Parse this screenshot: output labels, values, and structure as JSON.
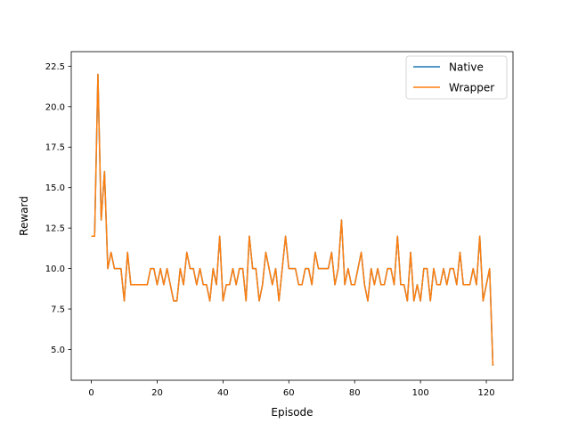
{
  "chart_data": {
    "type": "line",
    "title": "",
    "xlabel": "Episode",
    "ylabel": "Reward",
    "xlim": [
      -6.1,
      128.1
    ],
    "ylim": [
      3.1,
      23.4
    ],
    "xticks": [
      0,
      20,
      40,
      60,
      80,
      100,
      120
    ],
    "xtick_labels": [
      "0",
      "20",
      "40",
      "60",
      "80",
      "100",
      "120"
    ],
    "yticks": [
      5.0,
      7.5,
      10.0,
      12.5,
      15.0,
      17.5,
      20.0,
      22.5
    ],
    "ytick_labels": [
      "5.0",
      "7.5",
      "10.0",
      "12.5",
      "15.0",
      "17.5",
      "20.0",
      "22.5"
    ],
    "grid": false,
    "legend_position": "top-right",
    "x": [
      0,
      1,
      2,
      3,
      4,
      5,
      6,
      7,
      8,
      9,
      10,
      11,
      12,
      13,
      14,
      15,
      16,
      17,
      18,
      19,
      20,
      21,
      22,
      23,
      24,
      25,
      26,
      27,
      28,
      29,
      30,
      31,
      32,
      33,
      34,
      35,
      36,
      37,
      38,
      39,
      40,
      41,
      42,
      43,
      44,
      45,
      46,
      47,
      48,
      49,
      50,
      51,
      52,
      53,
      54,
      55,
      56,
      57,
      58,
      59,
      60,
      61,
      62,
      63,
      64,
      65,
      66,
      67,
      68,
      69,
      70,
      71,
      72,
      73,
      74,
      75,
      76,
      77,
      78,
      79,
      80,
      81,
      82,
      83,
      84,
      85,
      86,
      87,
      88,
      89,
      90,
      91,
      92,
      93,
      94,
      95,
      96,
      97,
      98,
      99,
      100,
      101,
      102,
      103,
      104,
      105,
      106,
      107,
      108,
      109,
      110,
      111,
      112,
      113,
      114,
      115,
      116,
      117,
      118,
      119,
      120,
      121,
      122
    ],
    "series": [
      {
        "name": "Native",
        "color": "#1f77b4",
        "values": [
          12,
          12,
          22,
          13,
          16,
          10,
          11,
          10,
          10,
          10,
          8,
          11,
          9,
          9,
          9,
          9,
          9,
          9,
          10,
          10,
          9,
          10,
          9,
          10,
          9,
          8,
          8,
          10,
          9,
          11,
          10,
          10,
          9,
          10,
          9,
          9,
          8,
          10,
          9,
          12,
          8,
          9,
          9,
          10,
          9,
          10,
          10,
          8,
          12,
          10,
          10,
          8,
          9,
          11,
          10,
          9,
          10,
          8,
          10,
          12,
          10,
          10,
          10,
          9,
          9,
          10,
          10,
          9,
          11,
          10,
          10,
          10,
          10,
          11,
          9,
          10,
          13,
          9,
          10,
          9,
          9,
          10,
          11,
          9,
          8,
          10,
          9,
          10,
          9,
          9,
          10,
          10,
          9,
          12,
          9,
          9,
          8,
          11,
          8,
          9,
          8,
          10,
          10,
          8,
          10,
          9,
          9,
          10,
          9,
          10,
          10,
          9,
          11,
          9,
          9,
          9,
          10,
          9,
          12,
          8,
          9,
          10,
          4
        ]
      },
      {
        "name": "Wrapper",
        "color": "#ff7f0e",
        "values": [
          12,
          12,
          22,
          13,
          16,
          10,
          11,
          10,
          10,
          10,
          8,
          11,
          9,
          9,
          9,
          9,
          9,
          9,
          10,
          10,
          9,
          10,
          9,
          10,
          9,
          8,
          8,
          10,
          9,
          11,
          10,
          10,
          9,
          10,
          9,
          9,
          8,
          10,
          9,
          12,
          8,
          9,
          9,
          10,
          9,
          10,
          10,
          8,
          12,
          10,
          10,
          8,
          9,
          11,
          10,
          9,
          10,
          8,
          10,
          12,
          10,
          10,
          10,
          9,
          9,
          10,
          10,
          9,
          11,
          10,
          10,
          10,
          10,
          11,
          9,
          10,
          13,
          9,
          10,
          9,
          9,
          10,
          11,
          9,
          8,
          10,
          9,
          10,
          9,
          9,
          10,
          10,
          9,
          12,
          9,
          9,
          8,
          11,
          8,
          9,
          8,
          10,
          10,
          8,
          10,
          9,
          9,
          10,
          9,
          10,
          10,
          9,
          11,
          9,
          9,
          9,
          10,
          9,
          12,
          8,
          9,
          10,
          4
        ]
      }
    ]
  }
}
